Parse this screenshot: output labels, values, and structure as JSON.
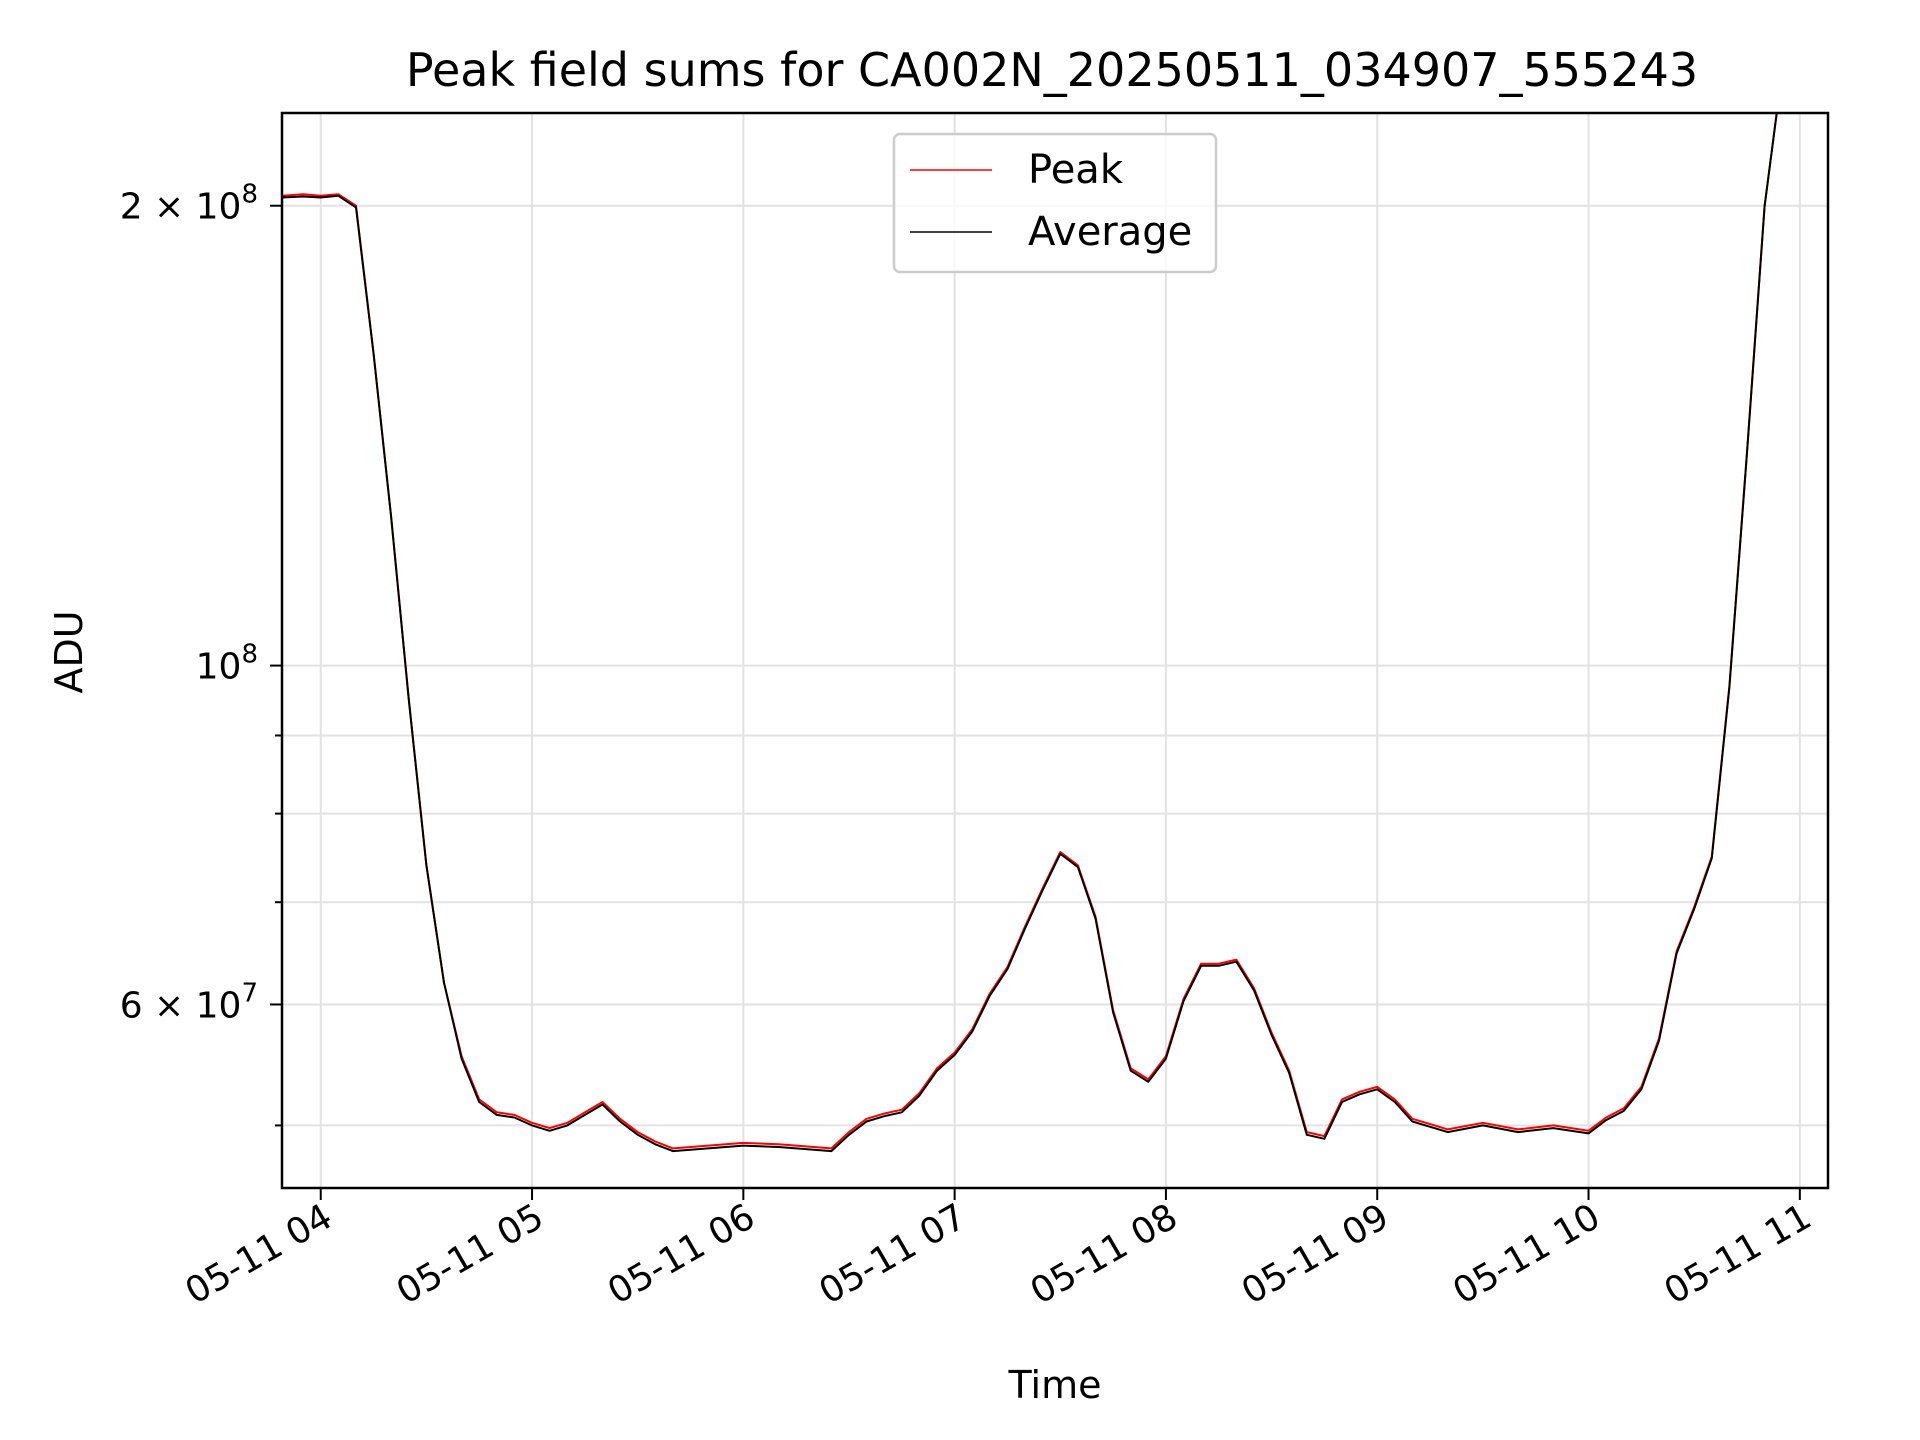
{
  "chart_data": {
    "type": "line",
    "title": "Peak field sums for CA002N_20250511_034907_555243",
    "xlabel": "Time",
    "ylabel": "ADU",
    "yscale": "log",
    "xlim": [
      "2025-05-11 03:49",
      "2025-05-11 11:08"
    ],
    "ylim": [
      45500000,
      230000000
    ],
    "grid": true,
    "legend_position": "top-center",
    "x_ticks": [
      {
        "value": "2025-05-11 04:00",
        "label": "05-11 04"
      },
      {
        "value": "2025-05-11 05:00",
        "label": "05-11 05"
      },
      {
        "value": "2025-05-11 06:00",
        "label": "05-11 06"
      },
      {
        "value": "2025-05-11 07:00",
        "label": "05-11 07"
      },
      {
        "value": "2025-05-11 08:00",
        "label": "05-11 08"
      },
      {
        "value": "2025-05-11 09:00",
        "label": "05-11 09"
      },
      {
        "value": "2025-05-11 10:00",
        "label": "05-11 10"
      },
      {
        "value": "2025-05-11 11:00",
        "label": "05-11 11"
      }
    ],
    "y_major_ticks": [
      {
        "value": 200000000,
        "label_base": "2 × 10",
        "label_exp": "8"
      },
      {
        "value": 100000000,
        "label_base": "10",
        "label_exp": "8"
      },
      {
        "value": 60000000,
        "label_base": "6 × 10",
        "label_exp": "7"
      }
    ],
    "y_minor_ticks": [
      90000000,
      80000000,
      70000000,
      50000000
    ],
    "series": [
      {
        "name": "Peak",
        "color": "#ff0000",
        "x": [
          "2025-05-11 03:49",
          "2025-05-11 03:55",
          "2025-05-11 04:00",
          "2025-05-11 04:05",
          "2025-05-11 04:10",
          "2025-05-11 04:15",
          "2025-05-11 04:20",
          "2025-05-11 04:25",
          "2025-05-11 04:30",
          "2025-05-11 04:35",
          "2025-05-11 04:40",
          "2025-05-11 04:45",
          "2025-05-11 04:50",
          "2025-05-11 04:55",
          "2025-05-11 05:00",
          "2025-05-11 05:05",
          "2025-05-11 05:10",
          "2025-05-11 05:15",
          "2025-05-11 05:20",
          "2025-05-11 05:25",
          "2025-05-11 05:30",
          "2025-05-11 05:35",
          "2025-05-11 05:40",
          "2025-05-11 05:50",
          "2025-05-11 06:00",
          "2025-05-11 06:10",
          "2025-05-11 06:20",
          "2025-05-11 06:25",
          "2025-05-11 06:30",
          "2025-05-11 06:35",
          "2025-05-11 06:40",
          "2025-05-11 06:45",
          "2025-05-11 06:50",
          "2025-05-11 06:55",
          "2025-05-11 07:00",
          "2025-05-11 07:05",
          "2025-05-11 07:10",
          "2025-05-11 07:15",
          "2025-05-11 07:20",
          "2025-05-11 07:25",
          "2025-05-11 07:30",
          "2025-05-11 07:35",
          "2025-05-11 07:40",
          "2025-05-11 07:45",
          "2025-05-11 07:50",
          "2025-05-11 07:55",
          "2025-05-11 08:00",
          "2025-05-11 08:05",
          "2025-05-11 08:10",
          "2025-05-11 08:15",
          "2025-05-11 08:20",
          "2025-05-11 08:25",
          "2025-05-11 08:30",
          "2025-05-11 08:35",
          "2025-05-11 08:40",
          "2025-05-11 08:45",
          "2025-05-11 08:50",
          "2025-05-11 08:55",
          "2025-05-11 09:00",
          "2025-05-11 09:05",
          "2025-05-11 09:10",
          "2025-05-11 09:15",
          "2025-05-11 09:20",
          "2025-05-11 09:30",
          "2025-05-11 09:40",
          "2025-05-11 09:50",
          "2025-05-11 10:00",
          "2025-05-11 10:05",
          "2025-05-11 10:10",
          "2025-05-11 10:15",
          "2025-05-11 10:20",
          "2025-05-11 10:25",
          "2025-05-11 10:30",
          "2025-05-11 10:35",
          "2025-05-11 10:40",
          "2025-05-11 10:45",
          "2025-05-11 10:50",
          "2025-05-11 10:55"
        ],
        "values": [
          203000000,
          203500000,
          203000000,
          203500000,
          200000000,
          160000000,
          125000000,
          95000000,
          74000000,
          62000000,
          55500000,
          52000000,
          51000000,
          50800000,
          50200000,
          49800000,
          50200000,
          51000000,
          51800000,
          50500000,
          49500000,
          48800000,
          48300000,
          48500000,
          48700000,
          48600000,
          48400000,
          48300000,
          49500000,
          50500000,
          50900000,
          51200000,
          52500000,
          54500000,
          55800000,
          57800000,
          61000000,
          63500000,
          67500000,
          71500000,
          75500000,
          74000000,
          68500000,
          59500000,
          54500000,
          53600000,
          55500000,
          60500000,
          63800000,
          63800000,
          64200000,
          61500000,
          57500000,
          54300000,
          49500000,
          49200000,
          52000000,
          52600000,
          53000000,
          52000000,
          50500000,
          50100000,
          49700000,
          50200000,
          49700000,
          50000000,
          49600000,
          50600000,
          51300000,
          53000000,
          57000000,
          65000000,
          69500000,
          75000000,
          97000000,
          138000000,
          200000000,
          245000000
        ]
      },
      {
        "name": "Average",
        "color": "#000000",
        "x": [
          "2025-05-11 03:49",
          "2025-05-11 03:55",
          "2025-05-11 04:00",
          "2025-05-11 04:05",
          "2025-05-11 04:10",
          "2025-05-11 04:15",
          "2025-05-11 04:20",
          "2025-05-11 04:25",
          "2025-05-11 04:30",
          "2025-05-11 04:35",
          "2025-05-11 04:40",
          "2025-05-11 04:45",
          "2025-05-11 04:50",
          "2025-05-11 04:55",
          "2025-05-11 05:00",
          "2025-05-11 05:05",
          "2025-05-11 05:10",
          "2025-05-11 05:15",
          "2025-05-11 05:20",
          "2025-05-11 05:25",
          "2025-05-11 05:30",
          "2025-05-11 05:35",
          "2025-05-11 05:40",
          "2025-05-11 05:50",
          "2025-05-11 06:00",
          "2025-05-11 06:10",
          "2025-05-11 06:20",
          "2025-05-11 06:25",
          "2025-05-11 06:30",
          "2025-05-11 06:35",
          "2025-05-11 06:40",
          "2025-05-11 06:45",
          "2025-05-11 06:50",
          "2025-05-11 06:55",
          "2025-05-11 07:00",
          "2025-05-11 07:05",
          "2025-05-11 07:10",
          "2025-05-11 07:15",
          "2025-05-11 07:20",
          "2025-05-11 07:25",
          "2025-05-11 07:30",
          "2025-05-11 07:35",
          "2025-05-11 07:40",
          "2025-05-11 07:45",
          "2025-05-11 07:50",
          "2025-05-11 07:55",
          "2025-05-11 08:00",
          "2025-05-11 08:05",
          "2025-05-11 08:10",
          "2025-05-11 08:15",
          "2025-05-11 08:20",
          "2025-05-11 08:25",
          "2025-05-11 08:30",
          "2025-05-11 08:35",
          "2025-05-11 08:40",
          "2025-05-11 08:45",
          "2025-05-11 08:50",
          "2025-05-11 08:55",
          "2025-05-11 09:00",
          "2025-05-11 09:05",
          "2025-05-11 09:10",
          "2025-05-11 09:15",
          "2025-05-11 09:20",
          "2025-05-11 09:30",
          "2025-05-11 09:40",
          "2025-05-11 09:50",
          "2025-05-11 10:00",
          "2025-05-11 10:05",
          "2025-05-11 10:10",
          "2025-05-11 10:15",
          "2025-05-11 10:20",
          "2025-05-11 10:25",
          "2025-05-11 10:30",
          "2025-05-11 10:35",
          "2025-05-11 10:40",
          "2025-05-11 10:45",
          "2025-05-11 10:50",
          "2025-05-11 10:55"
        ],
        "values": [
          202500000,
          202800000,
          202500000,
          203000000,
          199500000,
          160000000,
          125000000,
          95000000,
          74000000,
          62000000,
          55300000,
          51800000,
          50800000,
          50600000,
          50000000,
          49600000,
          50000000,
          50800000,
          51600000,
          50300000,
          49300000,
          48600000,
          48100000,
          48300000,
          48500000,
          48400000,
          48200000,
          48100000,
          49300000,
          50300000,
          50700000,
          51000000,
          52300000,
          54300000,
          55600000,
          57600000,
          60800000,
          63300000,
          67300000,
          71300000,
          75300000,
          73800000,
          68300000,
          59300000,
          54300000,
          53400000,
          55300000,
          60300000,
          63600000,
          63600000,
          64000000,
          61300000,
          57300000,
          54100000,
          49300000,
          49000000,
          51800000,
          52400000,
          52800000,
          51800000,
          50300000,
          49900000,
          49500000,
          50000000,
          49500000,
          49800000,
          49400000,
          50400000,
          51100000,
          52800000,
          56800000,
          64800000,
          69300000,
          74800000,
          96800000,
          137800000,
          199800000,
          245000000
        ]
      }
    ]
  }
}
